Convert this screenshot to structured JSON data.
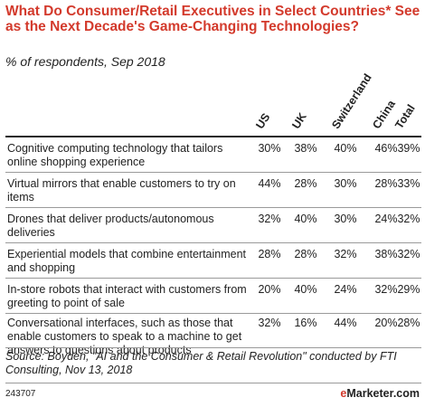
{
  "chart_data": {
    "type": "table",
    "title": "What Do Consumer/Retail Executives in Select Countries* See as the Next Decade's Game-Changing Technologies?",
    "subtitle": "% of respondents, Sep 2018",
    "columns": [
      "US",
      "UK",
      "Switzerland",
      "China",
      "Total"
    ],
    "rows": [
      {
        "label": "Cognitive computing technology that tailors online shopping experience",
        "values": [
          "30%",
          "38%",
          "40%",
          "46%",
          "39%"
        ]
      },
      {
        "label": "Virtual mirrors that enable customers to try on items",
        "values": [
          "44%",
          "28%",
          "30%",
          "28%",
          "33%"
        ]
      },
      {
        "label": "Drones that deliver products/autonomous deliveries",
        "values": [
          "32%",
          "40%",
          "30%",
          "24%",
          "32%"
        ]
      },
      {
        "label": "Experiential models that combine entertainment and shopping",
        "values": [
          "28%",
          "28%",
          "32%",
          "38%",
          "32%"
        ]
      },
      {
        "label": "In-store robots that interact with customers from greeting to point of sale",
        "values": [
          "20%",
          "40%",
          "24%",
          "32%",
          "29%"
        ]
      },
      {
        "label": "Conversational interfaces, such as those that enable customers to speak to a machine to get answers to questions about products",
        "values": [
          "32%",
          "16%",
          "44%",
          "20%",
          "28%"
        ]
      }
    ],
    "source": "Source: Boyden, \"AI and the Consumer & Retail Revolution\" conducted by FTI Consulting, Nov 13, 2018",
    "chart_id": "243707",
    "brand": {
      "prefix": "e",
      "rest": "Marketer",
      "suffix": ".com"
    },
    "colors": {
      "title": "#d33a2c",
      "text": "#222222",
      "rule": "#9a9a9a",
      "brand_accent": "#d33a2c"
    }
  }
}
